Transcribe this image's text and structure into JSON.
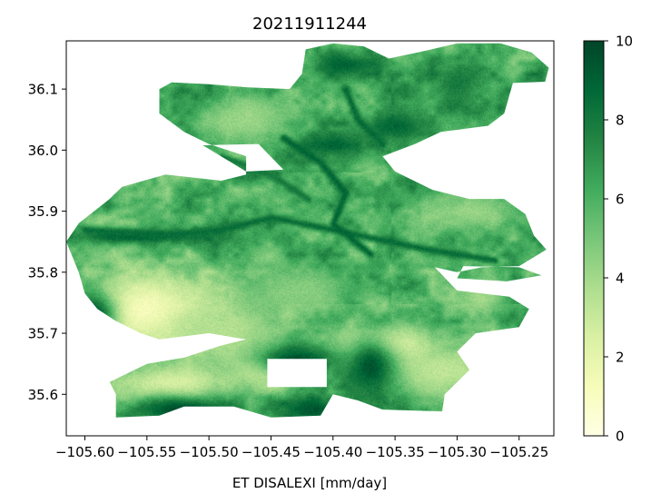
{
  "chart_data": {
    "type": "heatmap",
    "title": "20211911244",
    "xlabel": "ET DISALEXI [mm/day]",
    "ylabel": "",
    "xlim": [
      -105.615,
      -105.222
    ],
    "ylim": [
      35.532,
      36.179
    ],
    "x_ticks": [
      -105.6,
      -105.55,
      -105.5,
      -105.45,
      -105.4,
      -105.35,
      -105.3,
      -105.25
    ],
    "x_tick_labels": [
      "−105.60",
      "−105.55",
      "−105.50",
      "−105.45",
      "−105.40",
      "−105.35",
      "−105.30",
      "−105.25"
    ],
    "y_ticks": [
      35.6,
      35.7,
      35.8,
      35.9,
      36.0,
      36.1
    ],
    "y_tick_labels": [
      "35.6",
      "35.7",
      "35.8",
      "35.9",
      "36.0",
      "36.1"
    ],
    "colorbar": {
      "colormap": "YlGn",
      "vmin": 0,
      "vmax": 10,
      "ticks": [
        0,
        2,
        4,
        6,
        8,
        10
      ],
      "tick_labels": [
        "0",
        "2",
        "4",
        "6",
        "8",
        "10"
      ],
      "colors": [
        "#ffffe5",
        "#f7fcb9",
        "#d9f0a3",
        "#addd8e",
        "#78c679",
        "#41ab5d",
        "#238443",
        "#006837",
        "#004529"
      ]
    },
    "field": {
      "background_value": 6.2,
      "features": [
        {
          "kind": "low",
          "x": -105.555,
          "y": 35.735,
          "rx": 0.06,
          "ry": 0.06,
          "value": 0.8
        },
        {
          "kind": "low",
          "x": -105.49,
          "y": 35.7,
          "rx": 0.05,
          "ry": 0.05,
          "value": 3.5
        },
        {
          "kind": "low",
          "x": -105.36,
          "y": 35.68,
          "rx": 0.04,
          "ry": 0.035,
          "value": 1.5
        },
        {
          "kind": "low",
          "x": -105.31,
          "y": 35.64,
          "rx": 0.05,
          "ry": 0.045,
          "value": 3.2
        },
        {
          "kind": "low",
          "x": -105.43,
          "y": 35.77,
          "rx": 0.05,
          "ry": 0.04,
          "value": 4.6
        },
        {
          "kind": "low",
          "x": -105.53,
          "y": 35.62,
          "rx": 0.05,
          "ry": 0.03,
          "value": 2.5
        },
        {
          "kind": "low",
          "x": -105.45,
          "y": 35.64,
          "rx": 0.03,
          "ry": 0.025,
          "value": 2.0
        },
        {
          "kind": "high",
          "x": -105.43,
          "y": 35.655,
          "rx": 0.03,
          "ry": 0.025,
          "value": 9.8
        },
        {
          "kind": "high",
          "x": -105.37,
          "y": 35.645,
          "rx": 0.02,
          "ry": 0.05,
          "value": 9.5
        },
        {
          "kind": "high",
          "x": -105.52,
          "y": 35.575,
          "rx": 0.04,
          "ry": 0.02,
          "value": 9.8
        },
        {
          "kind": "high",
          "x": -105.415,
          "y": 35.575,
          "rx": 0.02,
          "ry": 0.02,
          "value": 9.5
        },
        {
          "kind": "high",
          "x": -105.595,
          "y": 35.73,
          "rx": 0.02,
          "ry": 0.04,
          "value": 9.8
        },
        {
          "kind": "high",
          "x": -105.4,
          "y": 36.01,
          "rx": 0.03,
          "ry": 0.02,
          "value": 9.0
        },
        {
          "kind": "high",
          "x": -105.39,
          "y": 36.14,
          "rx": 0.025,
          "ry": 0.02,
          "value": 9.0
        },
        {
          "kind": "high",
          "x": -105.35,
          "y": 36.04,
          "rx": 0.03,
          "ry": 0.025,
          "value": 8.8
        },
        {
          "kind": "high",
          "x": -105.56,
          "y": 35.86,
          "rx": 0.05,
          "ry": 0.012,
          "value": 9.3
        },
        {
          "kind": "high",
          "x": -105.3,
          "y": 36.11,
          "rx": 0.02,
          "ry": 0.04,
          "value": 8.0
        },
        {
          "kind": "low",
          "x": -105.47,
          "y": 36.05,
          "rx": 0.04,
          "ry": 0.04,
          "value": 4.2
        },
        {
          "kind": "low",
          "x": -105.29,
          "y": 35.9,
          "rx": 0.04,
          "ry": 0.03,
          "value": 4.2
        },
        {
          "kind": "low",
          "x": -105.28,
          "y": 35.76,
          "rx": 0.02,
          "ry": 0.03,
          "value": 4.0
        }
      ],
      "channels": [
        {
          "points": [
            [
              -105.6,
              35.87
            ],
            [
              -105.54,
              35.86
            ],
            [
              -105.49,
              35.87
            ],
            [
              -105.45,
              35.89
            ],
            [
              -105.4,
              35.87
            ],
            [
              -105.33,
              35.84
            ],
            [
              -105.27,
              35.82
            ]
          ],
          "value": 8.5
        },
        {
          "points": [
            [
              -105.44,
              36.02
            ],
            [
              -105.41,
              35.98
            ],
            [
              -105.39,
              35.93
            ],
            [
              -105.4,
              35.88
            ],
            [
              -105.37,
              35.83
            ]
          ],
          "value": 8.8
        },
        {
          "points": [
            [
              -105.39,
              36.1
            ],
            [
              -105.38,
              36.05
            ],
            [
              -105.36,
              36.01
            ]
          ],
          "value": 8.6
        },
        {
          "points": [
            [
              -105.49,
              35.99
            ],
            [
              -105.45,
              35.96
            ],
            [
              -105.42,
              35.92
            ]
          ],
          "value": 8.0
        }
      ],
      "outline": [
        [
          -105.53,
          36.111
        ],
        [
          -105.5,
          36.108
        ],
        [
          -105.47,
          36.103
        ],
        [
          -105.435,
          36.1
        ],
        [
          -105.425,
          36.125
        ],
        [
          -105.422,
          36.165
        ],
        [
          -105.4,
          36.175
        ],
        [
          -105.375,
          36.17
        ],
        [
          -105.355,
          36.15
        ],
        [
          -105.325,
          36.163
        ],
        [
          -105.3,
          36.175
        ],
        [
          -105.265,
          36.175
        ],
        [
          -105.24,
          36.16
        ],
        [
          -105.226,
          36.135
        ],
        [
          -105.229,
          36.112
        ],
        [
          -105.255,
          36.11
        ],
        [
          -105.262,
          36.06
        ],
        [
          -105.275,
          36.04
        ],
        [
          -105.313,
          36.03
        ],
        [
          -105.334,
          36.01
        ],
        [
          -105.36,
          35.99
        ],
        [
          -105.35,
          35.965
        ],
        [
          -105.32,
          35.935
        ],
        [
          -105.29,
          35.92
        ],
        [
          -105.262,
          35.92
        ],
        [
          -105.245,
          35.895
        ],
        [
          -105.238,
          35.86
        ],
        [
          -105.228,
          35.837
        ],
        [
          -105.25,
          35.81
        ],
        [
          -105.28,
          35.808
        ],
        [
          -105.3,
          35.8
        ],
        [
          -105.318,
          35.808
        ],
        [
          -105.3,
          35.77
        ],
        [
          -105.258,
          35.76
        ],
        [
          -105.242,
          35.74
        ],
        [
          -105.25,
          35.71
        ],
        [
          -105.285,
          35.7
        ],
        [
          -105.3,
          35.67
        ],
        [
          -105.29,
          35.64
        ],
        [
          -105.31,
          35.6
        ],
        [
          -105.312,
          35.572
        ],
        [
          -105.36,
          35.575
        ],
        [
          -105.38,
          35.59
        ],
        [
          -105.4,
          35.6
        ],
        [
          -105.41,
          35.565
        ],
        [
          -105.45,
          35.562
        ],
        [
          -105.48,
          35.58
        ],
        [
          -105.52,
          35.58
        ],
        [
          -105.54,
          35.565
        ],
        [
          -105.575,
          35.562
        ],
        [
          -105.575,
          35.6
        ],
        [
          -105.58,
          35.62
        ],
        [
          -105.55,
          35.65
        ],
        [
          -105.52,
          35.66
        ],
        [
          -105.49,
          35.68
        ],
        [
          -105.47,
          35.69
        ],
        [
          -105.5,
          35.7
        ],
        [
          -105.54,
          35.69
        ],
        [
          -105.555,
          35.7
        ],
        [
          -105.575,
          35.72
        ],
        [
          -105.59,
          35.74
        ],
        [
          -105.6,
          35.765
        ],
        [
          -105.605,
          35.8
        ],
        [
          -105.615,
          35.85
        ],
        [
          -105.605,
          35.88
        ],
        [
          -105.58,
          35.92
        ],
        [
          -105.57,
          35.94
        ],
        [
          -105.535,
          35.96
        ],
        [
          -105.49,
          35.95
        ],
        [
          -105.47,
          35.96
        ],
        [
          -105.47,
          35.99
        ],
        [
          -105.5,
          36.01
        ],
        [
          -105.52,
          36.03
        ],
        [
          -105.54,
          36.06
        ],
        [
          -105.54,
          36.1
        ]
      ],
      "holes": [
        [
          [
            -105.295,
            35.81
          ],
          [
            -105.25,
            35.808
          ],
          [
            -105.232,
            35.795
          ],
          [
            -105.26,
            35.785
          ],
          [
            -105.3,
            35.79
          ]
        ],
        [
          [
            -105.505,
            36.008
          ],
          [
            -105.47,
            35.965
          ],
          [
            -105.44,
            35.968
          ],
          [
            -105.46,
            36.01
          ]
        ],
        [
          [
            -105.453,
            35.658
          ],
          [
            -105.405,
            35.658
          ],
          [
            -105.405,
            35.612
          ],
          [
            -105.453,
            35.612
          ]
        ]
      ]
    }
  }
}
